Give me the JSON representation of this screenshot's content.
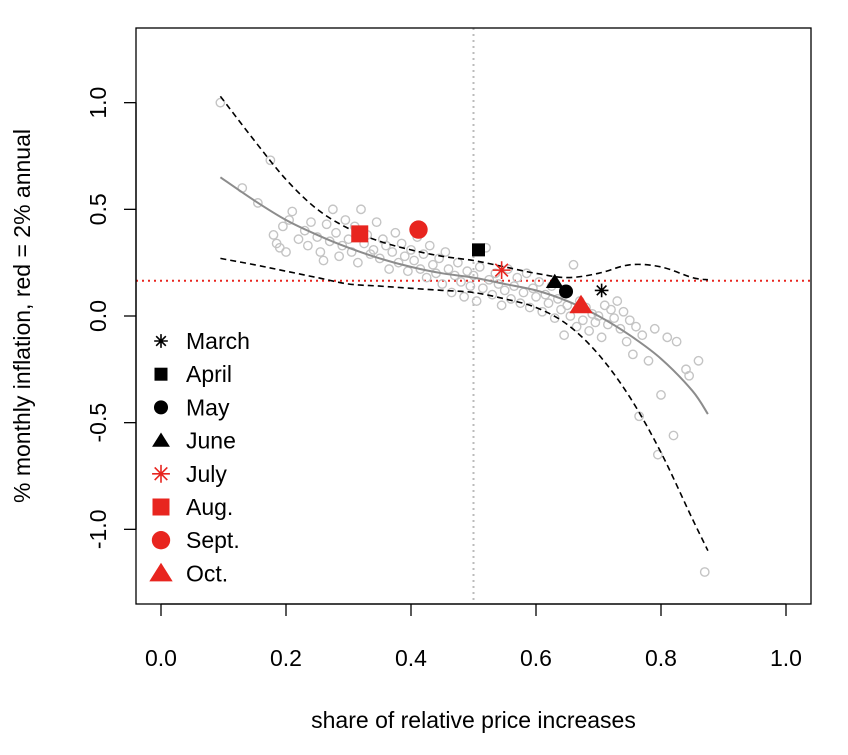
{
  "chart_data": {
    "type": "scatter",
    "xlabel": "share of relative price increases",
    "ylabel": "% monthly inflation, red = 2% annual",
    "xlim": [
      -0.04,
      1.04
    ],
    "ylim": [
      -1.35,
      1.35
    ],
    "x_ticks": [
      0.0,
      0.2,
      0.4,
      0.6,
      0.8,
      1.0
    ],
    "x_tick_labels": [
      "0.0",
      "0.2",
      "0.4",
      "0.6",
      "0.8",
      "1.0"
    ],
    "y_ticks": [
      -1.0,
      -0.5,
      0.0,
      0.5,
      1.0
    ],
    "y_tick_labels": [
      "-1.0",
      "-0.5",
      "0.0",
      "0.5",
      "1.0"
    ],
    "reference_lines": {
      "vertical_x": 0.5,
      "horizontal_y": 0.165,
      "vertical_color": "#bbbbbb",
      "horizontal_color": "#e8251f"
    },
    "background_points": [
      [
        0.095,
        1.0
      ],
      [
        0.13,
        0.6
      ],
      [
        0.155,
        0.53
      ],
      [
        0.175,
        0.73
      ],
      [
        0.18,
        0.38
      ],
      [
        0.185,
        0.34
      ],
      [
        0.19,
        0.32
      ],
      [
        0.195,
        0.42
      ],
      [
        0.2,
        0.3
      ],
      [
        0.205,
        0.45
      ],
      [
        0.21,
        0.49
      ],
      [
        0.22,
        0.36
      ],
      [
        0.23,
        0.4
      ],
      [
        0.235,
        0.33
      ],
      [
        0.24,
        0.44
      ],
      [
        0.25,
        0.37
      ],
      [
        0.255,
        0.3
      ],
      [
        0.26,
        0.26
      ],
      [
        0.265,
        0.43
      ],
      [
        0.27,
        0.35
      ],
      [
        0.275,
        0.5
      ],
      [
        0.28,
        0.39
      ],
      [
        0.285,
        0.28
      ],
      [
        0.29,
        0.33
      ],
      [
        0.295,
        0.45
      ],
      [
        0.3,
        0.36
      ],
      [
        0.305,
        0.3
      ],
      [
        0.31,
        0.42
      ],
      [
        0.315,
        0.25
      ],
      [
        0.32,
        0.5
      ],
      [
        0.325,
        0.34
      ],
      [
        0.33,
        0.38
      ],
      [
        0.335,
        0.29
      ],
      [
        0.34,
        0.31
      ],
      [
        0.345,
        0.44
      ],
      [
        0.35,
        0.27
      ],
      [
        0.355,
        0.36
      ],
      [
        0.36,
        0.33
      ],
      [
        0.365,
        0.22
      ],
      [
        0.37,
        0.3
      ],
      [
        0.375,
        0.39
      ],
      [
        0.38,
        0.25
      ],
      [
        0.385,
        0.34
      ],
      [
        0.39,
        0.28
      ],
      [
        0.395,
        0.21
      ],
      [
        0.4,
        0.31
      ],
      [
        0.405,
        0.26
      ],
      [
        0.41,
        0.37
      ],
      [
        0.415,
        0.22
      ],
      [
        0.42,
        0.29
      ],
      [
        0.425,
        0.18
      ],
      [
        0.43,
        0.33
      ],
      [
        0.435,
        0.24
      ],
      [
        0.44,
        0.2
      ],
      [
        0.445,
        0.27
      ],
      [
        0.45,
        0.15
      ],
      [
        0.455,
        0.3
      ],
      [
        0.46,
        0.22
      ],
      [
        0.465,
        0.11
      ],
      [
        0.47,
        0.19
      ],
      [
        0.475,
        0.25
      ],
      [
        0.48,
        0.16
      ],
      [
        0.485,
        0.09
      ],
      [
        0.49,
        0.21
      ],
      [
        0.495,
        0.14
      ],
      [
        0.5,
        0.19
      ],
      [
        0.505,
        0.07
      ],
      [
        0.51,
        0.23
      ],
      [
        0.515,
        0.13
      ],
      [
        0.52,
        0.32
      ],
      [
        0.525,
        0.17
      ],
      [
        0.53,
        0.1
      ],
      [
        0.535,
        0.2
      ],
      [
        0.54,
        0.15
      ],
      [
        0.545,
        0.05
      ],
      [
        0.55,
        0.12
      ],
      [
        0.555,
        0.22
      ],
      [
        0.56,
        0.08
      ],
      [
        0.565,
        0.14
      ],
      [
        0.57,
        0.18
      ],
      [
        0.575,
        0.06
      ],
      [
        0.58,
        0.11
      ],
      [
        0.585,
        0.2
      ],
      [
        0.59,
        0.04
      ],
      [
        0.595,
        0.13
      ],
      [
        0.6,
        0.09
      ],
      [
        0.605,
        0.16
      ],
      [
        0.61,
        0.02
      ],
      [
        0.615,
        0.1
      ],
      [
        0.62,
        0.06
      ],
      [
        0.625,
        0.14
      ],
      [
        0.63,
        -0.01
      ],
      [
        0.635,
        0.08
      ],
      [
        0.64,
        0.03
      ],
      [
        0.645,
        -0.09
      ],
      [
        0.65,
        0.05
      ],
      [
        0.655,
        0.0
      ],
      [
        0.66,
        0.24
      ],
      [
        0.665,
        -0.05
      ],
      [
        0.67,
        0.07
      ],
      [
        0.675,
        -0.02
      ],
      [
        0.68,
        0.04
      ],
      [
        0.685,
        -0.07
      ],
      [
        0.69,
        0.01
      ],
      [
        0.695,
        -0.03
      ],
      [
        0.7,
        0.0
      ],
      [
        0.705,
        -0.1
      ],
      [
        0.71,
        0.05
      ],
      [
        0.715,
        -0.04
      ],
      [
        0.72,
        0.03
      ],
      [
        0.725,
        -0.01
      ],
      [
        0.73,
        0.07
      ],
      [
        0.735,
        -0.06
      ],
      [
        0.74,
        0.02
      ],
      [
        0.745,
        -0.12
      ],
      [
        0.75,
        -0.02
      ],
      [
        0.755,
        -0.18
      ],
      [
        0.76,
        -0.05
      ],
      [
        0.765,
        -0.47
      ],
      [
        0.77,
        -0.09
      ],
      [
        0.78,
        -0.21
      ],
      [
        0.79,
        -0.06
      ],
      [
        0.795,
        -0.65
      ],
      [
        0.8,
        -0.37
      ],
      [
        0.81,
        -0.1
      ],
      [
        0.82,
        -0.56
      ],
      [
        0.825,
        -0.12
      ],
      [
        0.84,
        -0.25
      ],
      [
        0.845,
        -0.28
      ],
      [
        0.86,
        -0.21
      ],
      [
        0.87,
        -1.2
      ]
    ],
    "fit_line": [
      [
        0.095,
        0.65
      ],
      [
        0.15,
        0.54
      ],
      [
        0.2,
        0.45
      ],
      [
        0.25,
        0.38
      ],
      [
        0.3,
        0.32
      ],
      [
        0.35,
        0.27
      ],
      [
        0.4,
        0.23
      ],
      [
        0.45,
        0.2
      ],
      [
        0.5,
        0.18
      ],
      [
        0.55,
        0.15
      ],
      [
        0.6,
        0.12
      ],
      [
        0.65,
        0.07
      ],
      [
        0.7,
        0.0
      ],
      [
        0.75,
        -0.09
      ],
      [
        0.8,
        -0.2
      ],
      [
        0.85,
        -0.35
      ],
      [
        0.875,
        -0.46
      ]
    ],
    "upper_band": [
      [
        0.095,
        1.03
      ],
      [
        0.15,
        0.82
      ],
      [
        0.2,
        0.64
      ],
      [
        0.25,
        0.5
      ],
      [
        0.3,
        0.41
      ],
      [
        0.35,
        0.35
      ],
      [
        0.4,
        0.31
      ],
      [
        0.45,
        0.28
      ],
      [
        0.5,
        0.26
      ],
      [
        0.55,
        0.23
      ],
      [
        0.6,
        0.2
      ],
      [
        0.65,
        0.18
      ],
      [
        0.7,
        0.2
      ],
      [
        0.75,
        0.24
      ],
      [
        0.8,
        0.23
      ],
      [
        0.85,
        0.18
      ],
      [
        0.875,
        0.17
      ]
    ],
    "lower_band": [
      [
        0.095,
        0.27
      ],
      [
        0.15,
        0.24
      ],
      [
        0.2,
        0.21
      ],
      [
        0.25,
        0.18
      ],
      [
        0.3,
        0.15
      ],
      [
        0.35,
        0.14
      ],
      [
        0.4,
        0.13
      ],
      [
        0.45,
        0.12
      ],
      [
        0.5,
        0.11
      ],
      [
        0.55,
        0.08
      ],
      [
        0.6,
        0.04
      ],
      [
        0.65,
        -0.04
      ],
      [
        0.7,
        -0.18
      ],
      [
        0.75,
        -0.38
      ],
      [
        0.8,
        -0.64
      ],
      [
        0.85,
        -0.95
      ],
      [
        0.875,
        -1.1
      ]
    ],
    "highlighted_points": [
      {
        "label": "March",
        "x": 0.705,
        "y": 0.12,
        "marker": "asterisk",
        "color": "#000000"
      },
      {
        "label": "April",
        "x": 0.508,
        "y": 0.31,
        "marker": "square",
        "color": "#000000"
      },
      {
        "label": "May",
        "x": 0.648,
        "y": 0.115,
        "marker": "circle",
        "color": "#000000"
      },
      {
        "label": "June",
        "x": 0.63,
        "y": 0.16,
        "marker": "triangle",
        "color": "#000000"
      },
      {
        "label": "July",
        "x": 0.545,
        "y": 0.215,
        "marker": "asterisk",
        "color": "#e8251f"
      },
      {
        "label": "Aug.",
        "x": 0.318,
        "y": 0.385,
        "marker": "square",
        "color": "#e8251f"
      },
      {
        "label": "Sept.",
        "x": 0.412,
        "y": 0.405,
        "marker": "circle",
        "color": "#e8251f"
      },
      {
        "label": "Oct.",
        "x": 0.672,
        "y": 0.05,
        "marker": "triangle",
        "color": "#e8251f"
      }
    ],
    "legend": {
      "position": "bottom-left",
      "entries": [
        {
          "label": "March",
          "marker": "asterisk",
          "color": "#000000"
        },
        {
          "label": "April",
          "marker": "square",
          "color": "#000000"
        },
        {
          "label": "May",
          "marker": "circle",
          "color": "#000000"
        },
        {
          "label": "June",
          "marker": "triangle",
          "color": "#000000"
        },
        {
          "label": "July",
          "marker": "asterisk",
          "color": "#e8251f"
        },
        {
          "label": "Aug.",
          "marker": "square",
          "color": "#e8251f"
        },
        {
          "label": "Sept.",
          "marker": "circle",
          "color": "#e8251f"
        },
        {
          "label": "Oct.",
          "marker": "triangle",
          "color": "#e8251f"
        }
      ]
    },
    "colors": {
      "background_points": "#c4c4c4",
      "fit_line": "#8c8c8c",
      "bands": "#000000"
    }
  }
}
